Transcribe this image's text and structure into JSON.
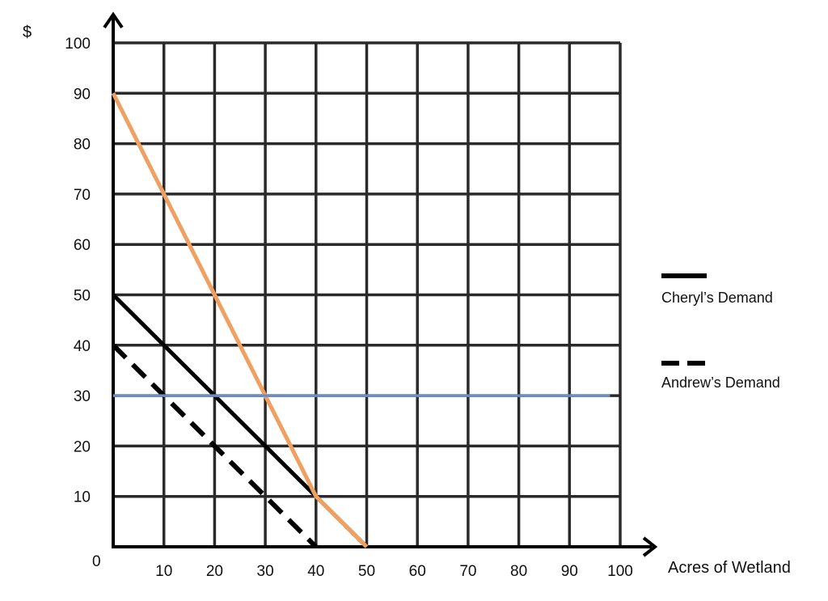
{
  "chart_data": {
    "type": "line",
    "ylabel": "$",
    "xlabel": "Acres of Wetland",
    "origin_label": "0",
    "xlim": [
      0,
      100
    ],
    "ylim": [
      0,
      100
    ],
    "grid": true,
    "x_ticks": [
      10,
      20,
      30,
      40,
      50,
      60,
      70,
      80,
      90,
      100
    ],
    "y_ticks": [
      10,
      20,
      30,
      40,
      50,
      60,
      70,
      80,
      90,
      100
    ],
    "x_tick_labels": [
      "10",
      "20",
      "30",
      "40",
      "50",
      "60",
      "70",
      "80",
      "90",
      "100"
    ],
    "y_tick_labels": [
      "10",
      "20",
      "30",
      "40",
      "50",
      "60",
      "70",
      "80",
      "90",
      "100"
    ],
    "legend": {
      "placement": "right",
      "entries": [
        {
          "label": "Cheryl’s Demand",
          "style": "solid",
          "color": "#000000"
        },
        {
          "label": "Andrew’s Demand",
          "style": "dashed",
          "color": "#000000"
        }
      ]
    },
    "series": [
      {
        "name": "Cheryl’s Demand",
        "style": "solid",
        "color": "#000000",
        "points": [
          [
            0,
            50
          ],
          [
            50,
            0
          ]
        ]
      },
      {
        "name": "Andrew’s Demand",
        "style": "dashed",
        "color": "#000000",
        "points": [
          [
            0,
            40
          ],
          [
            40,
            0
          ]
        ]
      },
      {
        "style": "solid",
        "color": "#F0A060",
        "points": [
          [
            0,
            90
          ],
          [
            40,
            10
          ],
          [
            50,
            0
          ]
        ]
      },
      {
        "style": "solid",
        "color": "#6A8FC8",
        "points": [
          [
            0,
            30
          ],
          [
            98,
            30
          ]
        ]
      }
    ]
  }
}
